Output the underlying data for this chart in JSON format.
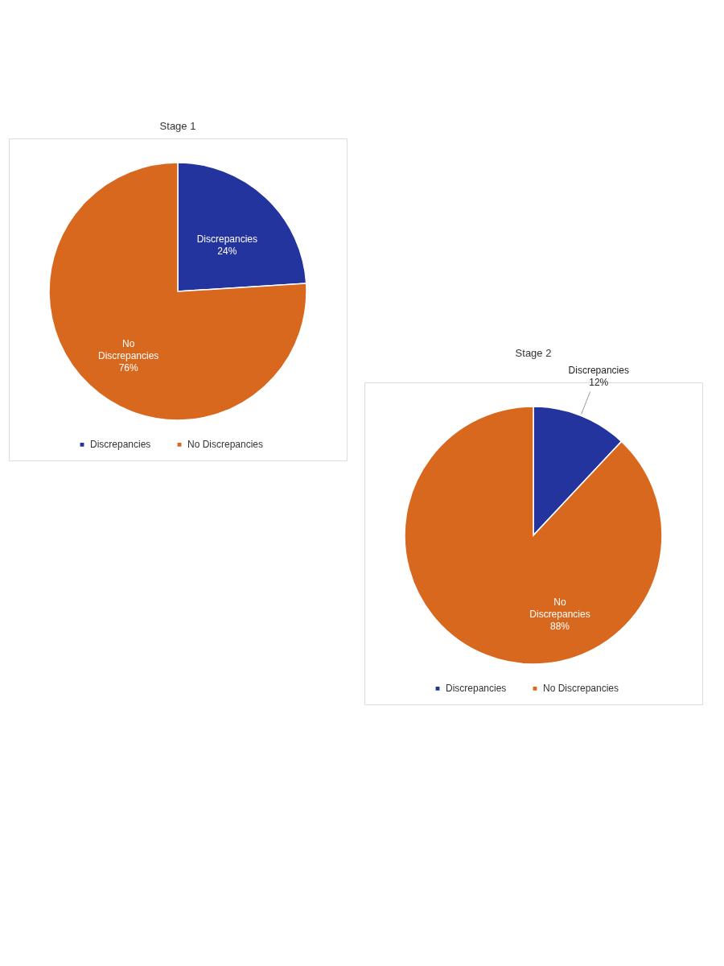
{
  "chart_data": [
    {
      "type": "pie",
      "title": "Stage 1",
      "categories": [
        "Discrepancies",
        "No Discrepancies"
      ],
      "values": [
        24,
        76
      ],
      "colors": [
        "#24349e",
        "#d9681f"
      ],
      "value_labels": [
        "Discrepancies 24%",
        "No Discrepancies 76%"
      ],
      "legend": "bottom"
    },
    {
      "type": "pie",
      "title": "Stage 2",
      "categories": [
        "Discrepancies",
        "No Discrepancies"
      ],
      "values": [
        12,
        88
      ],
      "colors": [
        "#24349e",
        "#d9681f"
      ],
      "value_labels": [
        "Discrepancies 12%",
        "No Discrepancies 88%"
      ],
      "legend": "bottom"
    }
  ]
}
